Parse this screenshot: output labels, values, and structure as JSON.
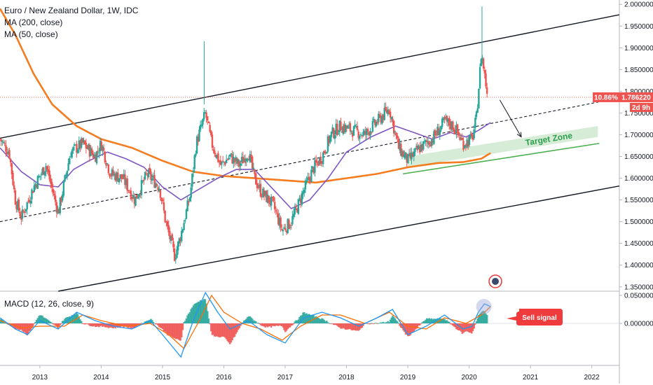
{
  "legend": {
    "title": "Euro / New Zealand Dollar, 1W, IDC",
    "ma200": "MA (200, close)",
    "ma50": "MA (50, close)",
    "macd": "MACD (12, 26, close, 9)"
  },
  "annotations": {
    "target_zone": "Target Zone",
    "sell_signal": "Sell signal",
    "price_change": "10.86%",
    "last_price": "1.786220",
    "countdown": "2d 9h"
  },
  "colors": {
    "up": "#26a69a",
    "down": "#ef5350",
    "ma200": "#f57c1f",
    "ma50": "#7e57c2",
    "macd_line": "#2196f3",
    "signal_line": "#ff6d00",
    "target_fill": "#c8e6c9",
    "target_stroke": "#4caf50",
    "sell_badge": "#ef3b3b"
  },
  "chart_data": [
    {
      "type": "candlestick",
      "title": "Euro / New Zealand Dollar, 1W, IDC",
      "x_ticks": [
        "2013",
        "2014",
        "2015",
        "2016",
        "2017",
        "2018",
        "2019",
        "2020",
        "2021",
        "2022"
      ],
      "y_ticks": [
        "2.000000",
        "1.950000",
        "1.900000",
        "1.850000",
        "1.800000",
        "1.750000",
        "1.700000",
        "1.650000",
        "1.600000",
        "1.550000",
        "1.500000",
        "1.450000",
        "1.400000",
        "1.350000"
      ],
      "ylim": [
        1.34,
        2.01
      ],
      "xlim": [
        2012.35,
        2022.45
      ],
      "close_path": [
        [
          2012.35,
          1.69
        ],
        [
          2012.5,
          1.66
        ],
        [
          2012.6,
          1.55
        ],
        [
          2012.7,
          1.51
        ],
        [
          2012.9,
          1.58
        ],
        [
          2013.1,
          1.63
        ],
        [
          2013.3,
          1.52
        ],
        [
          2013.5,
          1.66
        ],
        [
          2013.7,
          1.68
        ],
        [
          2013.9,
          1.65
        ],
        [
          2014.0,
          1.68
        ],
        [
          2014.15,
          1.61
        ],
        [
          2014.35,
          1.6
        ],
        [
          2014.55,
          1.55
        ],
        [
          2014.75,
          1.61
        ],
        [
          2014.95,
          1.58
        ],
        [
          2015.05,
          1.5
        ],
        [
          2015.2,
          1.42
        ],
        [
          2015.3,
          1.47
        ],
        [
          2015.45,
          1.56
        ],
        [
          2015.55,
          1.68
        ],
        [
          2015.7,
          1.75
        ],
        [
          2015.8,
          1.68
        ],
        [
          2015.95,
          1.63
        ],
        [
          2016.1,
          1.65
        ],
        [
          2016.25,
          1.63
        ],
        [
          2016.4,
          1.66
        ],
        [
          2016.5,
          1.6
        ],
        [
          2016.6,
          1.57
        ],
        [
          2016.8,
          1.54
        ],
        [
          2016.95,
          1.48
        ],
        [
          2017.1,
          1.5
        ],
        [
          2017.3,
          1.57
        ],
        [
          2017.45,
          1.62
        ],
        [
          2017.6,
          1.65
        ],
        [
          2017.75,
          1.7
        ],
        [
          2017.9,
          1.72
        ],
        [
          2018.1,
          1.71
        ],
        [
          2018.3,
          1.7
        ],
        [
          2018.5,
          1.73
        ],
        [
          2018.7,
          1.76
        ],
        [
          2018.85,
          1.67
        ],
        [
          2019.0,
          1.64
        ],
        [
          2019.2,
          1.67
        ],
        [
          2019.4,
          1.69
        ],
        [
          2019.6,
          1.73
        ],
        [
          2019.75,
          1.72
        ],
        [
          2019.9,
          1.68
        ],
        [
          2020.05,
          1.69
        ],
        [
          2020.12,
          1.74
        ],
        [
          2020.2,
          1.89
        ],
        [
          2020.25,
          1.84
        ],
        [
          2020.3,
          1.79
        ]
      ],
      "last_close": 1.78622,
      "series": [
        {
          "name": "MA (200, close)",
          "points": [
            [
              2012.35,
              1.99
            ],
            [
              2012.6,
              1.93
            ],
            [
              2012.9,
              1.84
            ],
            [
              2013.2,
              1.77
            ],
            [
              2013.6,
              1.72
            ],
            [
              2014.0,
              1.69
            ],
            [
              2014.5,
              1.67
            ],
            [
              2015.0,
              1.64
            ],
            [
              2015.5,
              1.615
            ],
            [
              2016.0,
              1.605
            ],
            [
              2016.5,
              1.6
            ],
            [
              2017.0,
              1.595
            ],
            [
              2017.5,
              1.59
            ],
            [
              2018.0,
              1.6
            ],
            [
              2018.5,
              1.61
            ],
            [
              2019.0,
              1.625
            ],
            [
              2019.5,
              1.635
            ],
            [
              2019.9,
              1.637
            ],
            [
              2020.2,
              1.645
            ],
            [
              2020.35,
              1.658
            ]
          ]
        },
        {
          "name": "MA (50, close)",
          "points": [
            [
              2012.35,
              1.67
            ],
            [
              2012.7,
              1.615
            ],
            [
              2013.0,
              1.585
            ],
            [
              2013.3,
              1.58
            ],
            [
              2013.55,
              1.62
            ],
            [
              2013.8,
              1.64
            ],
            [
              2014.1,
              1.66
            ],
            [
              2014.4,
              1.645
            ],
            [
              2014.7,
              1.625
            ],
            [
              2015.0,
              1.58
            ],
            [
              2015.3,
              1.55
            ],
            [
              2015.6,
              1.575
            ],
            [
              2015.9,
              1.6
            ],
            [
              2016.2,
              1.62
            ],
            [
              2016.5,
              1.62
            ],
            [
              2016.8,
              1.575
            ],
            [
              2017.1,
              1.53
            ],
            [
              2017.4,
              1.55
            ],
            [
              2017.7,
              1.6
            ],
            [
              2018.0,
              1.66
            ],
            [
              2018.4,
              1.695
            ],
            [
              2018.8,
              1.72
            ],
            [
              2019.1,
              1.705
            ],
            [
              2019.4,
              1.69
            ],
            [
              2019.7,
              1.705
            ],
            [
              2019.95,
              1.695
            ],
            [
              2020.15,
              1.71
            ],
            [
              2020.35,
              1.728
            ]
          ]
        }
      ],
      "channel": {
        "upper": [
          [
            2012.35,
            1.692
          ],
          [
            2022.45,
            1.976
          ]
        ],
        "middle": [
          [
            2012.35,
            1.5
          ],
          [
            2022.45,
            1.785
          ]
        ],
        "lower": [
          [
            2013.3,
            1.34
          ],
          [
            2022.45,
            1.582
          ]
        ]
      },
      "target_zone": {
        "x": [
          2019.0,
          2022.1
        ],
        "bottom_left": 1.625,
        "top_left": 1.65,
        "rise": 0.07
      },
      "projection_arrow": [
        [
          2020.5,
          1.78
        ],
        [
          2020.85,
          1.695
        ]
      ]
    },
    {
      "type": "bar",
      "title": "MACD (12, 26, close, 9)",
      "y_ticks": [
        "0.050000",
        "0.000000"
      ],
      "ylim": [
        -0.075,
        0.055
      ],
      "macd_path": [
        [
          2012.35,
          0.01
        ],
        [
          2012.6,
          -0.01
        ],
        [
          2012.8,
          -0.02
        ],
        [
          2013.0,
          0.005
        ],
        [
          2013.3,
          -0.01
        ],
        [
          2013.6,
          0.02
        ],
        [
          2013.9,
          0.005
        ],
        [
          2014.2,
          -0.005
        ],
        [
          2014.5,
          -0.01
        ],
        [
          2014.8,
          0.005
        ],
        [
          2015.0,
          -0.02
        ],
        [
          2015.3,
          -0.06
        ],
        [
          2015.5,
          0.005
        ],
        [
          2015.7,
          0.055
        ],
        [
          2015.9,
          0.02
        ],
        [
          2016.1,
          -0.01
        ],
        [
          2016.4,
          0.005
        ],
        [
          2016.7,
          -0.02
        ],
        [
          2017.0,
          -0.035
        ],
        [
          2017.3,
          0.01
        ],
        [
          2017.6,
          0.02
        ],
        [
          2017.9,
          0.01
        ],
        [
          2018.2,
          -0.005
        ],
        [
          2018.5,
          0.01
        ],
        [
          2018.75,
          0.025
        ],
        [
          2019.0,
          -0.02
        ],
        [
          2019.3,
          -0.005
        ],
        [
          2019.6,
          0.015
        ],
        [
          2019.9,
          -0.01
        ],
        [
          2020.05,
          -0.005
        ],
        [
          2020.15,
          0.02
        ],
        [
          2020.25,
          0.035
        ],
        [
          2020.35,
          0.03
        ]
      ],
      "signal_path": [
        [
          2012.35,
          0.005
        ],
        [
          2012.7,
          -0.008
        ],
        [
          2013.0,
          -0.005
        ],
        [
          2013.4,
          -0.005
        ],
        [
          2013.7,
          0.015
        ],
        [
          2014.0,
          0.005
        ],
        [
          2014.4,
          -0.005
        ],
        [
          2014.8,
          0.0
        ],
        [
          2015.1,
          -0.02
        ],
        [
          2015.35,
          -0.045
        ],
        [
          2015.6,
          0.005
        ],
        [
          2015.8,
          0.05
        ],
        [
          2016.0,
          0.02
        ],
        [
          2016.3,
          0.0
        ],
        [
          2016.6,
          -0.01
        ],
        [
          2016.95,
          -0.03
        ],
        [
          2017.25,
          -0.005
        ],
        [
          2017.6,
          0.015
        ],
        [
          2017.9,
          0.015
        ],
        [
          2018.3,
          0.0
        ],
        [
          2018.7,
          0.02
        ],
        [
          2019.0,
          -0.005
        ],
        [
          2019.3,
          -0.01
        ],
        [
          2019.6,
          0.01
        ],
        [
          2019.95,
          0.0
        ],
        [
          2020.2,
          0.015
        ],
        [
          2020.35,
          0.03
        ]
      ]
    }
  ]
}
